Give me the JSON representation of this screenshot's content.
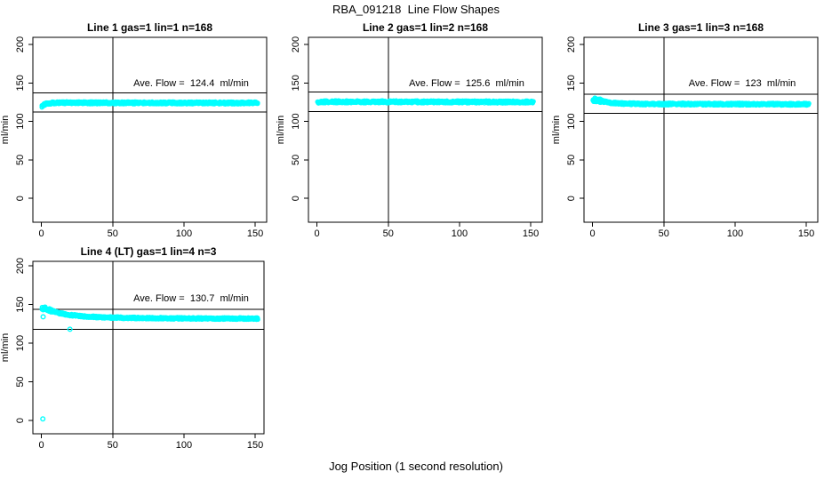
{
  "figure": {
    "title": "RBA_091218  Line Flow Shapes",
    "xlabel": "Jog Position (1 second resolution)",
    "point_color": "#00ffff",
    "axis_color": "#000000",
    "background": "#ffffff"
  },
  "chart_data": [
    {
      "type": "scatter",
      "panel": "top-left",
      "title": "Line 1 gas=1 lin=1 n=168",
      "ylabel": "ml/min",
      "annotation": "Ave. Flow =  124.4  ml/min",
      "ave_flow_ml_min": 124.4,
      "n": 168,
      "x_ticks": [
        0,
        50,
        100,
        150
      ],
      "y_ticks": [
        0,
        50,
        100,
        150,
        200
      ],
      "xlim": [
        0,
        155
      ],
      "ylim": [
        0,
        200
      ],
      "vline_x": 50,
      "hlines": [
        136.8,
        112.0
      ],
      "band": {
        "x_start": 0.5,
        "x_end": 152,
        "halfwidth": 1.5,
        "wide_start": false,
        "profile": [
          [
            0.5,
            119.5
          ],
          [
            1.5,
            121.5
          ],
          [
            4,
            123.5
          ],
          [
            10,
            124.2
          ],
          [
            80,
            124.1
          ],
          [
            152,
            124.0
          ]
        ]
      },
      "outliers": []
    },
    {
      "type": "scatter",
      "panel": "top-middle",
      "title": "Line 2 gas=1 lin=2 n=168",
      "ylabel": "ml/min",
      "annotation": "Ave. Flow =  125.6  ml/min",
      "ave_flow_ml_min": 125.6,
      "n": 168,
      "x_ticks": [
        0,
        50,
        100,
        150
      ],
      "y_ticks": [
        0,
        50,
        100,
        150,
        200
      ],
      "xlim": [
        0,
        155
      ],
      "ylim": [
        0,
        200
      ],
      "vline_x": 50,
      "hlines": [
        138.2,
        113.0
      ],
      "band": {
        "x_start": 0.5,
        "x_end": 152,
        "halfwidth": 1.5,
        "wide_start": false,
        "profile": [
          [
            0.5,
            124.8
          ],
          [
            2,
            125.5
          ],
          [
            80,
            125.4
          ],
          [
            152,
            125.2
          ]
        ]
      },
      "outliers": []
    },
    {
      "type": "scatter",
      "panel": "top-right",
      "title": "Line 3 gas=1 lin=3 n=168",
      "ylabel": "ml/min",
      "annotation": "Ave. Flow =  123  ml/min",
      "ave_flow_ml_min": 123,
      "n": 168,
      "x_ticks": [
        0,
        50,
        100,
        150
      ],
      "y_ticks": [
        0,
        50,
        100,
        150,
        200
      ],
      "xlim": [
        0,
        155
      ],
      "ylim": [
        0,
        200
      ],
      "vline_x": 50,
      "hlines": [
        135.3,
        110.7
      ],
      "band": {
        "x_start": 0.5,
        "x_end": 152,
        "halfwidth": 1.4,
        "wide_start": true,
        "profile": [
          [
            0.5,
            128.3
          ],
          [
            4,
            127.6
          ],
          [
            9,
            125.2
          ],
          [
            18,
            123.4
          ],
          [
            40,
            122.6
          ],
          [
            152,
            122.3
          ]
        ]
      },
      "outliers": []
    },
    {
      "type": "scatter",
      "panel": "bottom-left",
      "title": "Line 4 (LT) gas=1 lin=4 n=3",
      "ylabel": "ml/min",
      "annotation": "Ave. Flow =  130.7  ml/min",
      "ave_flow_ml_min": 130.7,
      "n": 3,
      "x_ticks": [
        0,
        50,
        100,
        150
      ],
      "y_ticks": [
        0,
        50,
        100,
        150,
        200
      ],
      "xlim": [
        0,
        155
      ],
      "ylim": [
        0,
        200
      ],
      "vline_x": 50,
      "hlines": [
        143.8,
        117.6
      ],
      "band": {
        "x_start": 0.5,
        "x_end": 152,
        "halfwidth": 1.2,
        "wide_start": true,
        "profile": [
          [
            0.5,
            144.5
          ],
          [
            3,
            144.8
          ],
          [
            7,
            142.0
          ],
          [
            12,
            139.0
          ],
          [
            20,
            136.3
          ],
          [
            30,
            134.6
          ],
          [
            45,
            133.2
          ],
          [
            70,
            132.4
          ],
          [
            110,
            131.9
          ],
          [
            152,
            131.7
          ]
        ]
      },
      "outliers": [
        [
          1,
          2
        ],
        [
          1.2,
          134
        ],
        [
          20,
          118
        ]
      ]
    }
  ]
}
